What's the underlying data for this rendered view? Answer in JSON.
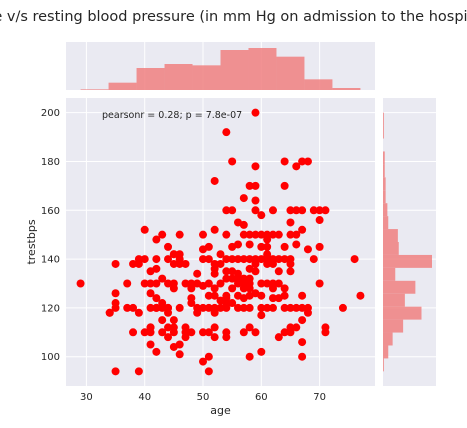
{
  "chart_data": {
    "type": "scatter",
    "title": "Age v/s resting blood pressure (in mm Hg on admission to the hospital)",
    "xlabel": "age",
    "ylabel": "trestbps",
    "annotation": "pearsonr = 0.28; p = 7.8e-07",
    "xlim": [
      26.5,
      79.5
    ],
    "ylim": [
      88,
      206
    ],
    "xticks": [
      30,
      40,
      50,
      60,
      70
    ],
    "yticks": [
      100,
      120,
      140,
      160,
      180,
      200
    ],
    "grid": true,
    "colors": {
      "point": "#ff0000",
      "hist_fill": "#f08080",
      "panel_bg": "#eaeaf2",
      "grid": "#ffffff"
    },
    "points": [
      [
        29,
        130
      ],
      [
        34,
        118
      ],
      [
        34,
        118
      ],
      [
        35,
        120
      ],
      [
        35,
        122
      ],
      [
        35,
        126
      ],
      [
        35,
        138
      ],
      [
        35,
        94
      ],
      [
        37,
        120
      ],
      [
        37,
        130
      ],
      [
        38,
        110
      ],
      [
        38,
        120
      ],
      [
        38,
        138
      ],
      [
        39,
        94
      ],
      [
        39,
        118
      ],
      [
        39,
        138
      ],
      [
        39,
        140
      ],
      [
        40,
        110
      ],
      [
        40,
        140
      ],
      [
        40,
        152
      ],
      [
        40,
        130
      ],
      [
        41,
        105
      ],
      [
        41,
        110
      ],
      [
        41,
        112
      ],
      [
        41,
        120
      ],
      [
        41,
        126
      ],
      [
        41,
        130
      ],
      [
        41,
        135
      ],
      [
        41,
        112
      ],
      [
        42,
        102
      ],
      [
        42,
        120
      ],
      [
        42,
        124
      ],
      [
        42,
        130
      ],
      [
        42,
        136
      ],
      [
        42,
        140
      ],
      [
        42,
        148
      ],
      [
        42,
        120
      ],
      [
        43,
        115
      ],
      [
        43,
        120
      ],
      [
        43,
        122
      ],
      [
        43,
        132
      ],
      [
        43,
        150
      ],
      [
        43,
        110
      ],
      [
        44,
        108
      ],
      [
        44,
        112
      ],
      [
        44,
        118
      ],
      [
        44,
        120
      ],
      [
        44,
        130
      ],
      [
        44,
        140
      ],
      [
        44,
        145
      ],
      [
        44,
        120
      ],
      [
        45,
        104
      ],
      [
        45,
        110
      ],
      [
        45,
        112
      ],
      [
        45,
        115
      ],
      [
        45,
        128
      ],
      [
        45,
        130
      ],
      [
        45,
        138
      ],
      [
        45,
        142
      ],
      [
        45,
        142
      ],
      [
        46,
        101
      ],
      [
        46,
        105
      ],
      [
        46,
        120
      ],
      [
        46,
        138
      ],
      [
        46,
        140
      ],
      [
        46,
        142
      ],
      [
        46,
        150
      ],
      [
        47,
        108
      ],
      [
        47,
        110
      ],
      [
        47,
        112
      ],
      [
        47,
        130
      ],
      [
        47,
        138
      ],
      [
        48,
        110
      ],
      [
        48,
        122
      ],
      [
        48,
        124
      ],
      [
        48,
        130
      ],
      [
        48,
        128
      ],
      [
        49,
        118
      ],
      [
        49,
        120
      ],
      [
        49,
        130
      ],
      [
        49,
        134
      ],
      [
        50,
        98
      ],
      [
        50,
        110
      ],
      [
        50,
        120
      ],
      [
        50,
        129
      ],
      [
        50,
        140
      ],
      [
        50,
        144
      ],
      [
        50,
        150
      ],
      [
        51,
        94
      ],
      [
        51,
        100
      ],
      [
        51,
        110
      ],
      [
        51,
        120
      ],
      [
        51,
        125
      ],
      [
        51,
        130
      ],
      [
        51,
        140
      ],
      [
        51,
        145
      ],
      [
        52,
        108
      ],
      [
        52,
        112
      ],
      [
        52,
        118
      ],
      [
        52,
        120
      ],
      [
        52,
        125
      ],
      [
        52,
        128
      ],
      [
        52,
        134
      ],
      [
        52,
        136
      ],
      [
        52,
        138
      ],
      [
        52,
        152
      ],
      [
        52,
        172
      ],
      [
        53,
        123
      ],
      [
        53,
        130
      ],
      [
        53,
        138
      ],
      [
        53,
        142
      ],
      [
        53,
        120
      ],
      [
        54,
        108
      ],
      [
        54,
        110
      ],
      [
        54,
        120
      ],
      [
        54,
        122
      ],
      [
        54,
        124
      ],
      [
        54,
        125
      ],
      [
        54,
        132
      ],
      [
        54,
        135
      ],
      [
        54,
        140
      ],
      [
        54,
        150
      ],
      [
        54,
        160
      ],
      [
        54,
        192
      ],
      [
        55,
        122
      ],
      [
        55,
        128
      ],
      [
        55,
        132
      ],
      [
        55,
        135
      ],
      [
        55,
        140
      ],
      [
        55,
        145
      ],
      [
        55,
        160
      ],
      [
        55,
        180
      ],
      [
        56,
        120
      ],
      [
        56,
        125
      ],
      [
        56,
        130
      ],
      [
        56,
        132
      ],
      [
        56,
        134
      ],
      [
        56,
        140
      ],
      [
        56,
        146
      ],
      [
        56,
        155
      ],
      [
        57,
        110
      ],
      [
        57,
        120
      ],
      [
        57,
        124
      ],
      [
        57,
        128
      ],
      [
        57,
        130
      ],
      [
        57,
        132
      ],
      [
        57,
        140
      ],
      [
        57,
        150
      ],
      [
        57,
        154
      ],
      [
        57,
        165
      ],
      [
        58,
        100
      ],
      [
        58,
        112
      ],
      [
        58,
        120
      ],
      [
        58,
        125
      ],
      [
        58,
        128
      ],
      [
        58,
        130
      ],
      [
        58,
        132
      ],
      [
        58,
        136
      ],
      [
        58,
        140
      ],
      [
        58,
        146
      ],
      [
        58,
        150
      ],
      [
        58,
        170
      ],
      [
        59,
        110
      ],
      [
        59,
        126
      ],
      [
        59,
        135
      ],
      [
        59,
        138
      ],
      [
        59,
        140
      ],
      [
        59,
        150
      ],
      [
        59,
        160
      ],
      [
        59,
        164
      ],
      [
        59,
        170
      ],
      [
        59,
        178
      ],
      [
        59,
        200
      ],
      [
        60,
        102
      ],
      [
        60,
        117
      ],
      [
        60,
        120
      ],
      [
        60,
        125
      ],
      [
        60,
        130
      ],
      [
        60,
        140
      ],
      [
        60,
        145
      ],
      [
        60,
        150
      ],
      [
        60,
        158
      ],
      [
        61,
        120
      ],
      [
        61,
        130
      ],
      [
        61,
        138
      ],
      [
        61,
        140
      ],
      [
        61,
        142
      ],
      [
        61,
        145
      ],
      [
        61,
        148
      ],
      [
        61,
        150
      ],
      [
        62,
        120
      ],
      [
        62,
        124
      ],
      [
        62,
        128
      ],
      [
        62,
        130
      ],
      [
        62,
        138
      ],
      [
        62,
        140
      ],
      [
        62,
        150
      ],
      [
        62,
        160
      ],
      [
        63,
        108
      ],
      [
        63,
        124
      ],
      [
        63,
        130
      ],
      [
        63,
        135
      ],
      [
        63,
        140
      ],
      [
        63,
        150
      ],
      [
        64,
        110
      ],
      [
        64,
        120
      ],
      [
        64,
        125
      ],
      [
        64,
        128
      ],
      [
        64,
        140
      ],
      [
        64,
        145
      ],
      [
        64,
        170
      ],
      [
        64,
        180
      ],
      [
        65,
        110
      ],
      [
        65,
        120
      ],
      [
        65,
        135
      ],
      [
        65,
        138
      ],
      [
        65,
        140
      ],
      [
        65,
        150
      ],
      [
        65,
        155
      ],
      [
        65,
        160
      ],
      [
        65,
        112
      ],
      [
        66,
        112
      ],
      [
        66,
        120
      ],
      [
        66,
        146
      ],
      [
        66,
        150
      ],
      [
        66,
        160
      ],
      [
        66,
        178
      ],
      [
        67,
        100
      ],
      [
        67,
        106
      ],
      [
        67,
        115
      ],
      [
        67,
        120
      ],
      [
        67,
        125
      ],
      [
        67,
        152
      ],
      [
        67,
        160
      ],
      [
        67,
        180
      ],
      [
        68,
        118
      ],
      [
        68,
        120
      ],
      [
        68,
        144
      ],
      [
        68,
        180
      ],
      [
        69,
        140
      ],
      [
        69,
        160
      ],
      [
        70,
        130
      ],
      [
        70,
        145
      ],
      [
        70,
        156
      ],
      [
        70,
        160
      ],
      [
        71,
        110
      ],
      [
        71,
        112
      ],
      [
        71,
        160
      ],
      [
        74,
        120
      ],
      [
        76,
        140
      ],
      [
        77,
        125
      ]
    ],
    "age_histogram": {
      "bins": [
        [
          29,
          33.8
        ],
        [
          33.8,
          38.6
        ],
        [
          38.6,
          43.4
        ],
        [
          43.4,
          48.2
        ],
        [
          48.2,
          53
        ],
        [
          53,
          57.8
        ],
        [
          57.8,
          62.6
        ],
        [
          62.6,
          67.4
        ],
        [
          67.4,
          72.2
        ],
        [
          72.2,
          77
        ]
      ],
      "counts": [
        1,
        11,
        33,
        39,
        37,
        60,
        63,
        50,
        16,
        3
      ]
    },
    "trestbps_histogram": {
      "bins": [
        [
          94,
          99.3
        ],
        [
          99.3,
          104.6
        ],
        [
          104.6,
          109.9
        ],
        [
          109.9,
          115.2
        ],
        [
          115.2,
          120.5
        ],
        [
          120.5,
          125.8
        ],
        [
          125.8,
          131.1
        ],
        [
          131.1,
          136.4
        ],
        [
          136.4,
          141.7
        ],
        [
          141.7,
          147
        ],
        [
          147,
          152.3
        ],
        [
          152.3,
          157.6
        ],
        [
          157.6,
          162.9
        ],
        [
          162.9,
          168.2
        ],
        [
          168.2,
          173.5
        ],
        [
          173.5,
          178.8
        ],
        [
          178.8,
          184.1
        ],
        [
          184.1,
          189.4
        ],
        [
          189.4,
          194.7
        ],
        [
          194.7,
          200
        ]
      ],
      "counts": [
        1,
        6,
        11,
        23,
        44,
        25,
        37,
        14,
        56,
        18,
        17,
        6,
        5,
        3,
        3,
        2,
        2,
        0,
        1,
        1
      ]
    }
  }
}
